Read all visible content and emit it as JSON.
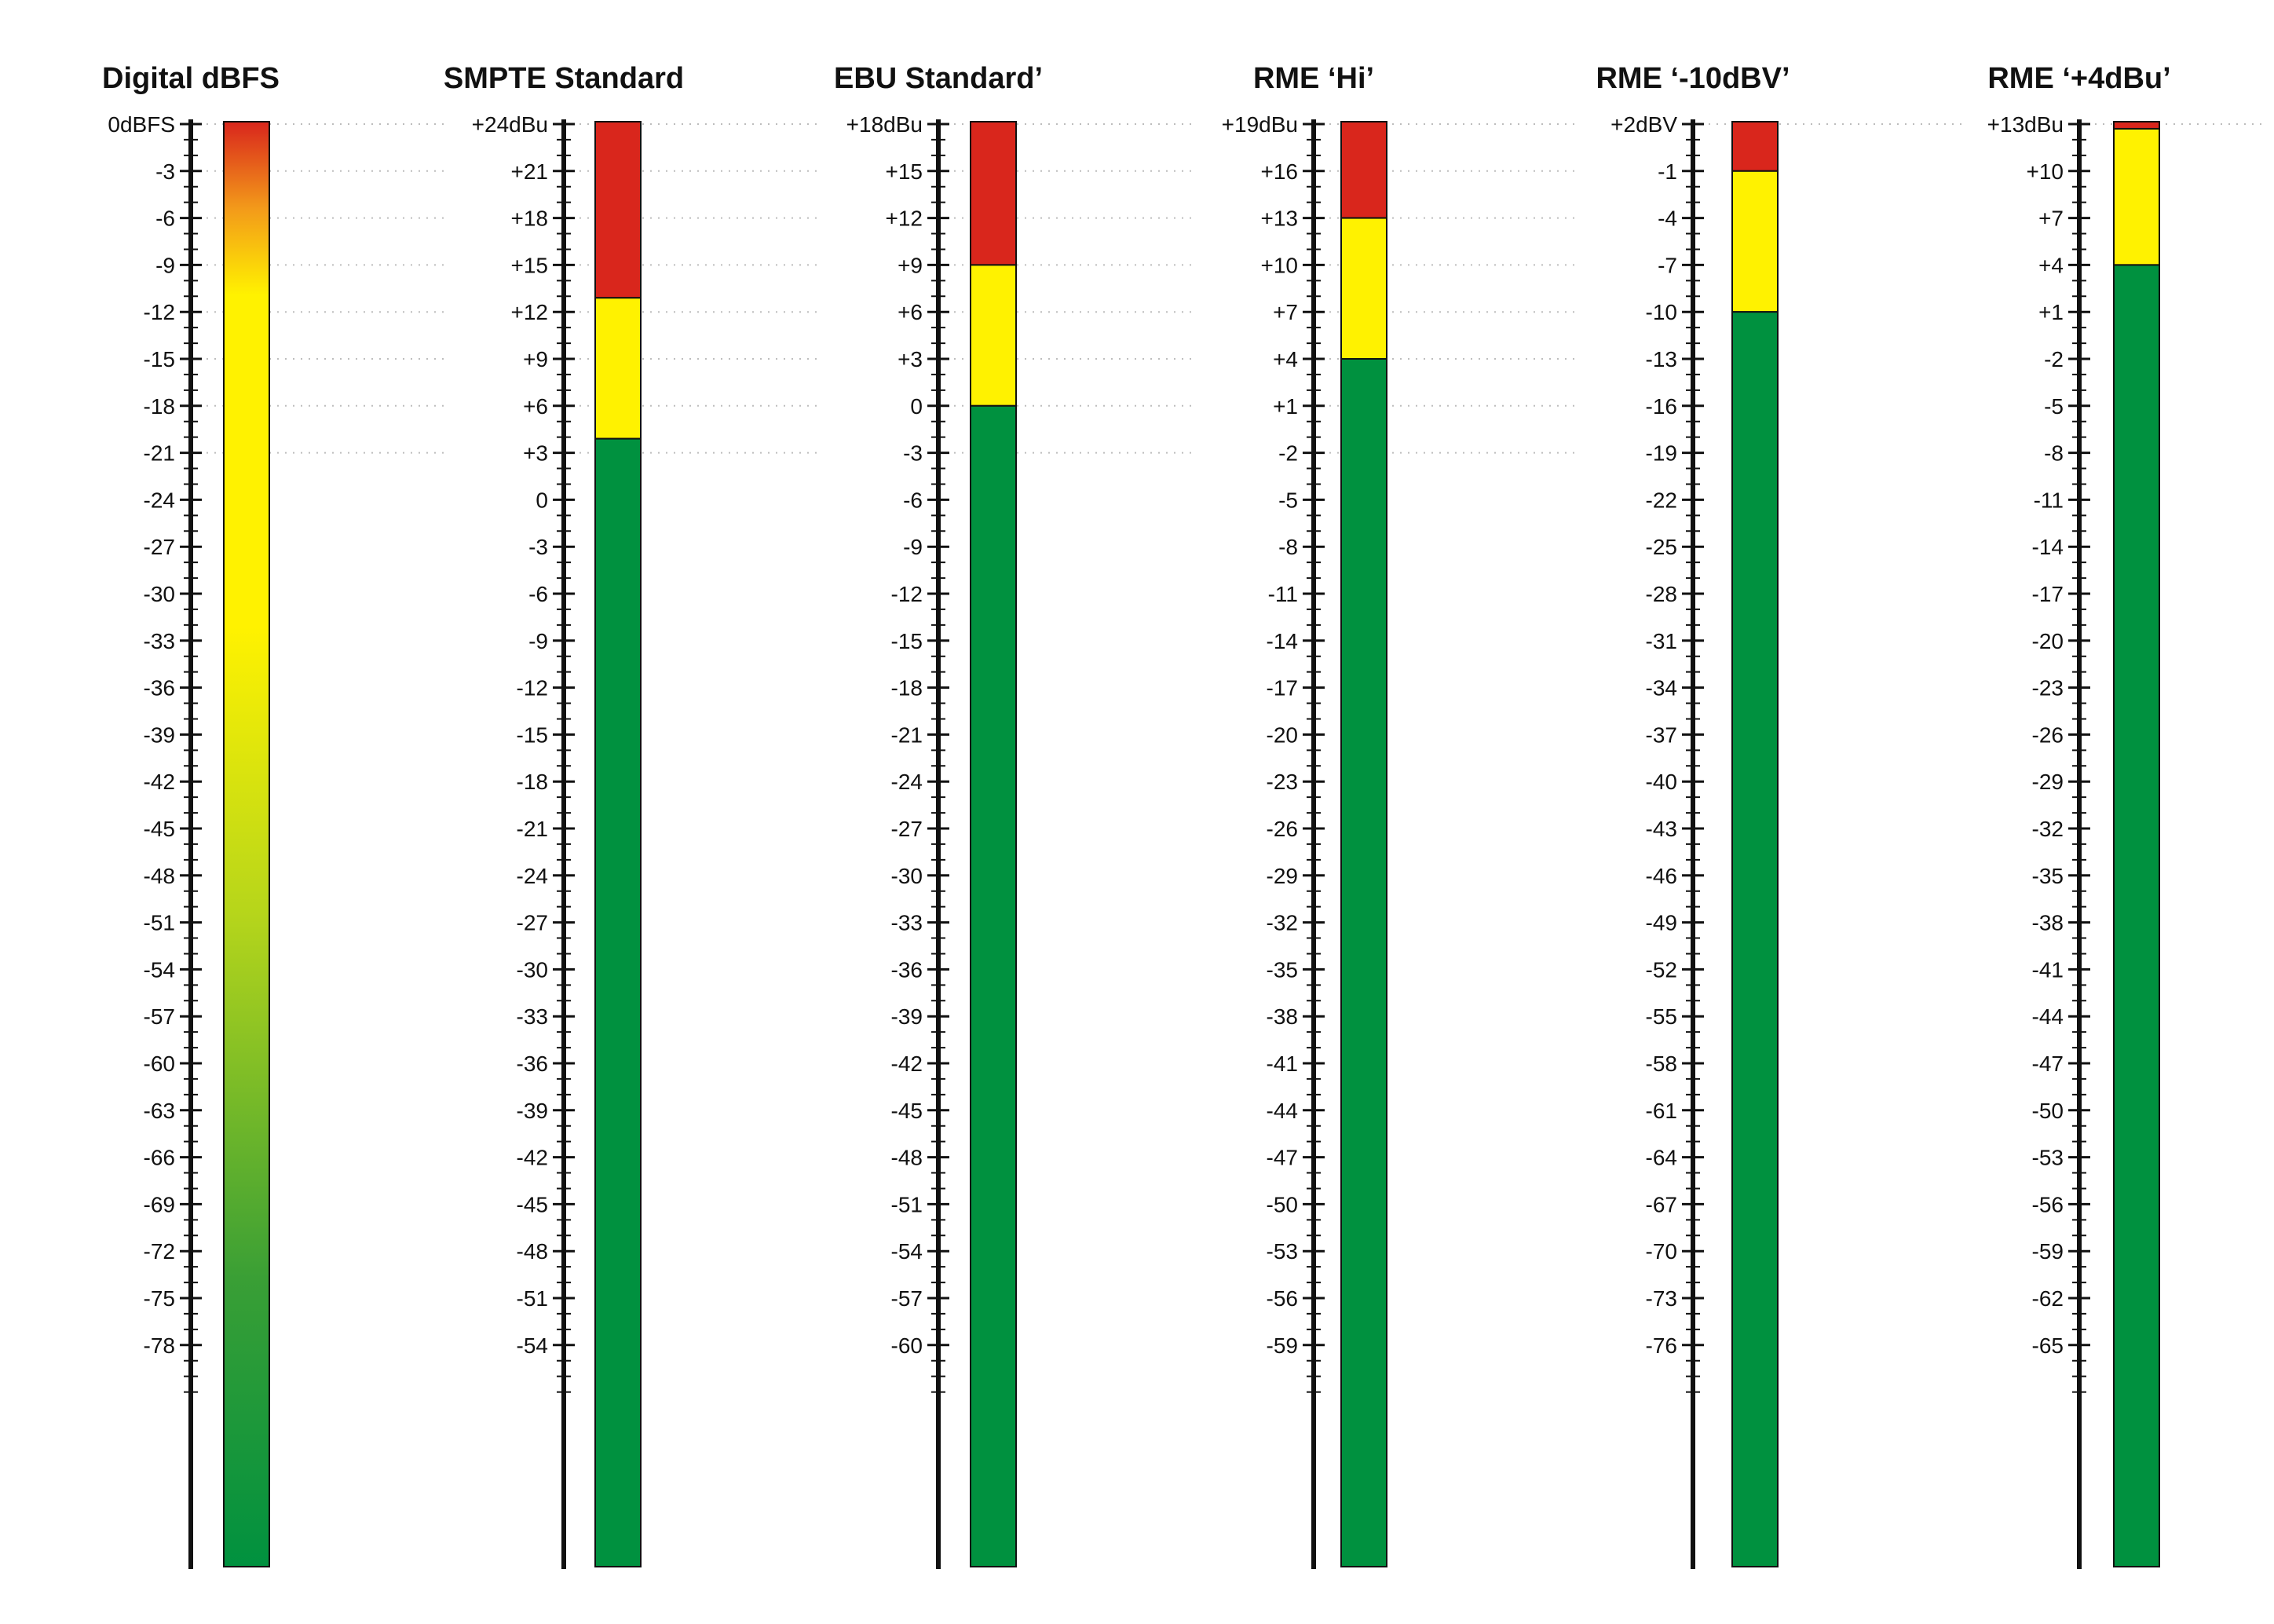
{
  "colors": {
    "red": "#d9261c",
    "yellow": "#fff200",
    "green": "#00913f",
    "digital_gradient": [
      "#d9261c",
      "#f39a1a",
      "#fff200",
      "#fff200",
      "#b5d51b",
      "#3a9f35",
      "#00913f"
    ],
    "scale_line": "#111111",
    "guide": "#bdbdbd"
  },
  "meters": [
    {
      "title": "Digital dBFS",
      "labels": [
        "0dBFS",
        "-3",
        "-6",
        "-9",
        "-12",
        "-15",
        "-18",
        "-21",
        "-24",
        "-27",
        "-30",
        "-33",
        "-36",
        "-39",
        "-42",
        "-45",
        "-48",
        "-51",
        "-54",
        "-57",
        "-60",
        "-63",
        "-66",
        "-69",
        "-72",
        "-75",
        "-78"
      ],
      "style": "gradient",
      "guides_to_step": 7
    },
    {
      "title": "SMPTE Standard",
      "labels": [
        "+24dBu",
        "+21",
        "+18",
        "+15",
        "+12",
        "+9",
        "+6",
        "+3",
        "0",
        "-3",
        "-6",
        "-9",
        "-12",
        "-15",
        "-18",
        "-21",
        "-24",
        "-27",
        "-30",
        "-33",
        "-36",
        "-39",
        "-42",
        "-45",
        "-48",
        "-51",
        "-54"
      ],
      "style": "segments",
      "red_bottom_step": 3.7,
      "yellow_bottom_step": 6.7,
      "guides_to_step": 7
    },
    {
      "title": "EBU Standard’",
      "labels": [
        "+18dBu",
        "+15",
        "+12",
        "+9",
        "+6",
        "+3",
        "0",
        "-3",
        "-6",
        "-9",
        "-12",
        "-15",
        "-18",
        "-21",
        "-24",
        "-27",
        "-30",
        "-33",
        "-36",
        "-39",
        "-42",
        "-45",
        "-48",
        "-51",
        "-54",
        "-57",
        "-60"
      ],
      "style": "segments",
      "red_bottom_step": 3,
      "yellow_bottom_step": 6,
      "guides_to_step": 7
    },
    {
      "title": "RME ‘Hi’",
      "labels": [
        "+19dBu",
        "+16",
        "+13",
        "+10",
        "+7",
        "+4",
        "+1",
        "-2",
        "-5",
        "-8",
        "-11",
        "-14",
        "-17",
        "-20",
        "-23",
        "-26",
        "-29",
        "-32",
        "-35",
        "-38",
        "-41",
        "-44",
        "-47",
        "-50",
        "-53",
        "-56",
        "-59"
      ],
      "style": "segments",
      "red_bottom_step": 2,
      "yellow_bottom_step": 5,
      "guides_to_step": 7
    },
    {
      "title": "RME ‘-10dBV’",
      "labels": [
        "+2dBV",
        "-1",
        "-4",
        "-7",
        "-10",
        "-13",
        "-16",
        "-19",
        "-22",
        "-25",
        "-28",
        "-31",
        "-34",
        "-37",
        "-40",
        "-43",
        "-46",
        "-49",
        "-52",
        "-55",
        "-58",
        "-61",
        "-64",
        "-67",
        "-70",
        "-73",
        "-76"
      ],
      "style": "segments",
      "red_bottom_step": 1,
      "yellow_bottom_step": 4,
      "guides_to_step": 0
    },
    {
      "title": "RME ‘+4dBu’",
      "labels": [
        "+13dBu",
        "+10",
        "+7",
        "+4",
        "+1",
        "-2",
        "-5",
        "-8",
        "-11",
        "-14",
        "-17",
        "-20",
        "-23",
        "-26",
        "-29",
        "-32",
        "-35",
        "-38",
        "-41",
        "-44",
        "-47",
        "-50",
        "-53",
        "-56",
        "-59",
        "-62",
        "-65"
      ],
      "style": "segments",
      "red_bottom_step": 0.1,
      "yellow_bottom_step": 3,
      "guides_to_step": 0
    }
  ]
}
